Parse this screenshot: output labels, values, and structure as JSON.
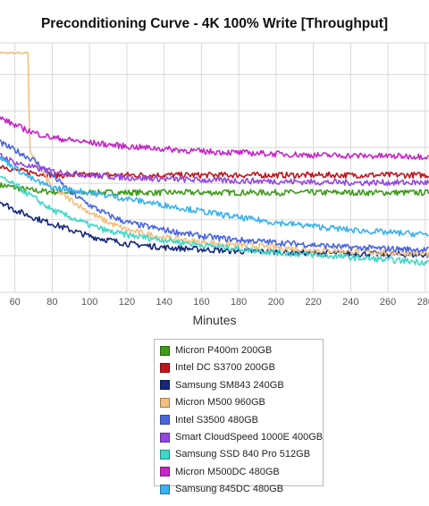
{
  "chart_data": {
    "type": "line",
    "title": "Preconditioning Curve - 4K 100% Write [Throughput]",
    "xlabel": "Minutes",
    "ylabel": "",
    "xlim": [
      52,
      282
    ],
    "ylim": [
      0,
      1
    ],
    "x_ticks": [
      60,
      80,
      100,
      120,
      140,
      160,
      180,
      200,
      220,
      240,
      260,
      280
    ],
    "y_gridlines": [
      0.0,
      0.147,
      0.291,
      0.437,
      0.581,
      0.727,
      0.873,
      1.0
    ],
    "grid": true,
    "legend_position": "bottom",
    "series": [
      {
        "name": "Micron P400m 200GB",
        "color": "#3f9a1a",
        "points": [
          [
            52,
            0.43
          ],
          [
            60,
            0.42
          ],
          [
            68,
            0.41
          ],
          [
            75,
            0.405
          ],
          [
            90,
            0.4
          ],
          [
            110,
            0.4
          ],
          [
            130,
            0.4
          ],
          [
            150,
            0.4
          ],
          [
            170,
            0.4
          ],
          [
            200,
            0.4
          ],
          [
            230,
            0.4
          ],
          [
            260,
            0.4
          ],
          [
            282,
            0.4
          ]
        ]
      },
      {
        "name": "Intel DC S3700 200GB",
        "color": "#c0161e",
        "points": [
          [
            52,
            0.51
          ],
          [
            60,
            0.49
          ],
          [
            70,
            0.48
          ],
          [
            80,
            0.47
          ],
          [
            100,
            0.47
          ],
          [
            120,
            0.47
          ],
          [
            140,
            0.47
          ],
          [
            160,
            0.47
          ],
          [
            180,
            0.47
          ],
          [
            200,
            0.47
          ],
          [
            220,
            0.47
          ],
          [
            240,
            0.47
          ],
          [
            260,
            0.47
          ],
          [
            282,
            0.47
          ]
        ]
      },
      {
        "name": "Samsung SM843 240GB",
        "color": "#16287a",
        "points": [
          [
            52,
            0.365
          ],
          [
            60,
            0.33
          ],
          [
            70,
            0.3
          ],
          [
            80,
            0.275
          ],
          [
            90,
            0.25
          ],
          [
            100,
            0.225
          ],
          [
            110,
            0.21
          ],
          [
            120,
            0.195
          ],
          [
            140,
            0.18
          ],
          [
            160,
            0.172
          ],
          [
            180,
            0.165
          ],
          [
            200,
            0.162
          ],
          [
            220,
            0.158
          ],
          [
            240,
            0.155
          ],
          [
            260,
            0.153
          ],
          [
            282,
            0.15
          ]
        ]
      },
      {
        "name": "Micron M500 960GB",
        "color": "#f2c080",
        "points": [
          [
            52,
            0.96
          ],
          [
            67,
            0.96
          ],
          [
            68,
            0.56
          ],
          [
            70,
            0.54
          ],
          [
            75,
            0.48
          ],
          [
            80,
            0.42
          ],
          [
            90,
            0.37
          ],
          [
            100,
            0.32
          ],
          [
            110,
            0.28
          ],
          [
            120,
            0.25
          ],
          [
            140,
            0.22
          ],
          [
            160,
            0.2
          ],
          [
            180,
            0.19
          ],
          [
            200,
            0.18
          ],
          [
            220,
            0.17
          ],
          [
            240,
            0.165
          ],
          [
            260,
            0.16
          ],
          [
            282,
            0.155
          ]
        ]
      },
      {
        "name": "Intel S3500 480GB",
        "color": "#4a66e0",
        "points": [
          [
            52,
            0.6
          ],
          [
            60,
            0.57
          ],
          [
            70,
            0.53
          ],
          [
            80,
            0.47
          ],
          [
            90,
            0.4
          ],
          [
            100,
            0.35
          ],
          [
            110,
            0.31
          ],
          [
            120,
            0.28
          ],
          [
            140,
            0.25
          ],
          [
            160,
            0.225
          ],
          [
            180,
            0.21
          ],
          [
            200,
            0.2
          ],
          [
            220,
            0.19
          ],
          [
            240,
            0.18
          ],
          [
            260,
            0.175
          ],
          [
            282,
            0.17
          ]
        ]
      },
      {
        "name": "Smart CloudSpeed 1000E 400GB",
        "color": "#9348e0",
        "points": [
          [
            52,
            0.55
          ],
          [
            60,
            0.52
          ],
          [
            70,
            0.5
          ],
          [
            80,
            0.485
          ],
          [
            100,
            0.47
          ],
          [
            120,
            0.46
          ],
          [
            140,
            0.455
          ],
          [
            160,
            0.45
          ],
          [
            180,
            0.447
          ],
          [
            200,
            0.445
          ],
          [
            220,
            0.442
          ],
          [
            240,
            0.44
          ],
          [
            260,
            0.44
          ],
          [
            282,
            0.44
          ]
        ]
      },
      {
        "name": "Samsung SSD 840 Pro 512GB",
        "color": "#40d8c8",
        "points": [
          [
            52,
            0.46
          ],
          [
            60,
            0.43
          ],
          [
            70,
            0.38
          ],
          [
            80,
            0.33
          ],
          [
            90,
            0.3
          ],
          [
            100,
            0.27
          ],
          [
            110,
            0.245
          ],
          [
            120,
            0.23
          ],
          [
            140,
            0.21
          ],
          [
            160,
            0.19
          ],
          [
            180,
            0.175
          ],
          [
            200,
            0.16
          ],
          [
            220,
            0.15
          ],
          [
            240,
            0.14
          ],
          [
            260,
            0.13
          ],
          [
            282,
            0.12
          ]
        ]
      },
      {
        "name": "Micron M500DC 480GB",
        "color": "#c626c6",
        "points": [
          [
            52,
            0.7
          ],
          [
            60,
            0.67
          ],
          [
            70,
            0.64
          ],
          [
            80,
            0.62
          ],
          [
            100,
            0.6
          ],
          [
            120,
            0.585
          ],
          [
            140,
            0.575
          ],
          [
            160,
            0.565
          ],
          [
            180,
            0.56
          ],
          [
            200,
            0.555
          ],
          [
            220,
            0.55
          ],
          [
            240,
            0.548
          ],
          [
            260,
            0.546
          ],
          [
            282,
            0.545
          ]
        ]
      },
      {
        "name": "Samsung 845DC 480GB",
        "color": "#3ab2ee",
        "points": [
          [
            52,
            0.54
          ],
          [
            60,
            0.5
          ],
          [
            70,
            0.45
          ],
          [
            80,
            0.42
          ],
          [
            100,
            0.4
          ],
          [
            120,
            0.375
          ],
          [
            140,
            0.35
          ],
          [
            160,
            0.325
          ],
          [
            180,
            0.3
          ],
          [
            200,
            0.28
          ],
          [
            220,
            0.265
          ],
          [
            240,
            0.25
          ],
          [
            260,
            0.24
          ],
          [
            282,
            0.232
          ]
        ]
      }
    ]
  }
}
